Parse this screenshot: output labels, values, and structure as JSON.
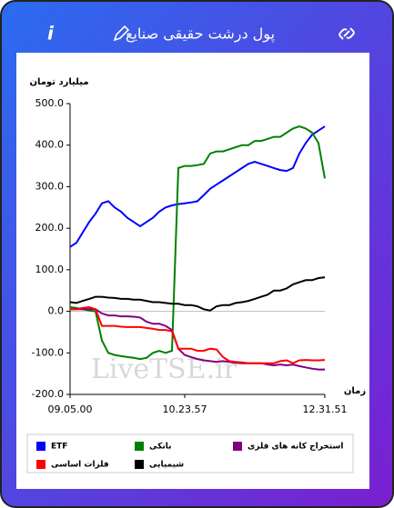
{
  "header": {
    "title": "پول درشت حقیقی صنایع",
    "info": "i"
  },
  "chart_data": {
    "type": "line",
    "y_label": "میلیارد تومان",
    "x_label": "زمان",
    "watermark": "LiveTSE.ir",
    "categories": [
      "09.05.00",
      null,
      null,
      null,
      null,
      null,
      null,
      null,
      null,
      null,
      null,
      null,
      null,
      null,
      null,
      null,
      null,
      null,
      "10.23.57",
      null,
      null,
      null,
      null,
      null,
      null,
      null,
      null,
      null,
      null,
      null,
      null,
      null,
      null,
      null,
      null,
      null,
      null,
      null,
      null,
      null,
      "12.31.51"
    ],
    "ylim": [
      -200,
      500
    ],
    "yticks": [
      {
        "value": -200,
        "label": "-200.0"
      },
      {
        "value": -100,
        "label": "-100.0"
      },
      {
        "value": 0,
        "label": "0.0"
      },
      {
        "value": 100,
        "label": "100.0"
      },
      {
        "value": 200,
        "label": "200.0"
      },
      {
        "value": 300,
        "label": "300.0"
      },
      {
        "value": 400,
        "label": "400.0"
      },
      {
        "value": 500,
        "label": "500.0"
      }
    ],
    "grid": false,
    "legend": "bottom",
    "series": [
      {
        "name": "ETF",
        "color": "#0000ff",
        "values": [
          155,
          165,
          190,
          215,
          235,
          260,
          265,
          250,
          240,
          225,
          215,
          205,
          215,
          225,
          240,
          250,
          255,
          258,
          260,
          262,
          265,
          280,
          295,
          305,
          315,
          325,
          335,
          345,
          355,
          360,
          355,
          350,
          345,
          340,
          338,
          345,
          380,
          405,
          425,
          435,
          445
        ]
      },
      {
        "name": "بانکی",
        "color": "#008000",
        "values": [
          10,
          8,
          5,
          2,
          0,
          -70,
          -100,
          -105,
          -108,
          -110,
          -112,
          -115,
          -112,
          -100,
          -95,
          -100,
          -95,
          345,
          350,
          350,
          352,
          355,
          380,
          385,
          385,
          390,
          395,
          400,
          400,
          410,
          410,
          415,
          420,
          420,
          430,
          440,
          445,
          440,
          430,
          405,
          320
        ]
      },
      {
        "name": "استخراج کانه های فلزی",
        "color": "#800080",
        "values": [
          5,
          5,
          5,
          5,
          5,
          -5,
          -10,
          -10,
          -12,
          -12,
          -13,
          -15,
          -25,
          -30,
          -30,
          -35,
          -45,
          -90,
          -105,
          -110,
          -115,
          -118,
          -120,
          -122,
          -120,
          -122,
          -124,
          -125,
          -125,
          -125,
          -125,
          -128,
          -130,
          -128,
          -130,
          -128,
          -132,
          -135,
          -138,
          -140,
          -140
        ]
      },
      {
        "name": "فلزات اساسی",
        "color": "#ff0000",
        "values": [
          5,
          5,
          8,
          10,
          5,
          -35,
          -35,
          -35,
          -37,
          -38,
          -38,
          -38,
          -40,
          -42,
          -45,
          -45,
          -48,
          -90,
          -90,
          -90,
          -95,
          -95,
          -90,
          -92,
          -110,
          -120,
          -122,
          -123,
          -125,
          -125,
          -125,
          -125,
          -125,
          -120,
          -118,
          -125,
          -118,
          -117,
          -118,
          -118,
          -117
        ]
      },
      {
        "name": "شیمیایی",
        "color": "#000000",
        "values": [
          22,
          20,
          25,
          30,
          35,
          35,
          33,
          32,
          30,
          30,
          28,
          28,
          25,
          22,
          22,
          20,
          18,
          18,
          15,
          15,
          12,
          5,
          2,
          12,
          15,
          15,
          20,
          22,
          25,
          30,
          35,
          40,
          50,
          50,
          55,
          65,
          70,
          75,
          75,
          80,
          82
        ]
      }
    ]
  }
}
